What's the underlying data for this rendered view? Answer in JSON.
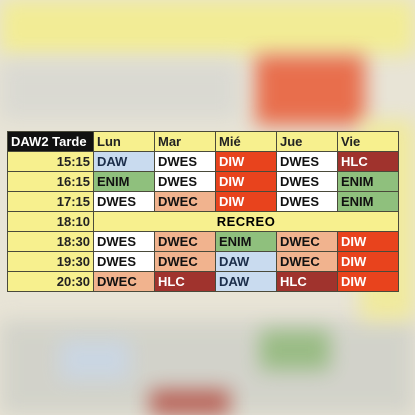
{
  "table": {
    "title": "DAW2 Tarde",
    "days": [
      "Lun",
      "Mar",
      "Mié",
      "Jue",
      "Vie"
    ],
    "rows": [
      {
        "time": "15:15",
        "cells": [
          "DAW",
          "DWES",
          "DIW",
          "DWES",
          "HLC"
        ]
      },
      {
        "time": "16:15",
        "cells": [
          "ENIM",
          "DWES",
          "DIW",
          "DWES",
          "ENIM"
        ]
      },
      {
        "time": "17:15",
        "cells": [
          "DWES",
          "DWEC",
          "DIW",
          "DWES",
          "ENIM"
        ]
      },
      {
        "time": "18:10",
        "break": "RECREO"
      },
      {
        "time": "18:30",
        "cells": [
          "DWES",
          "DWEC",
          "ENIM",
          "DWEC",
          "DIW"
        ]
      },
      {
        "time": "19:30",
        "cells": [
          "DWES",
          "DWEC",
          "DAW",
          "DWEC",
          "DIW"
        ]
      },
      {
        "time": "20:30",
        "cells": [
          "DWEC",
          "HLC",
          "DAW",
          "HLC",
          "DIW"
        ]
      }
    ]
  },
  "subject_colors": {
    "DAW": "#c9dbef",
    "DWES": "#ffffff",
    "DIW": "#e8431d",
    "HLC": "#a0332d",
    "ENIM": "#8fc07d",
    "DWEC": "#f1b38e"
  }
}
